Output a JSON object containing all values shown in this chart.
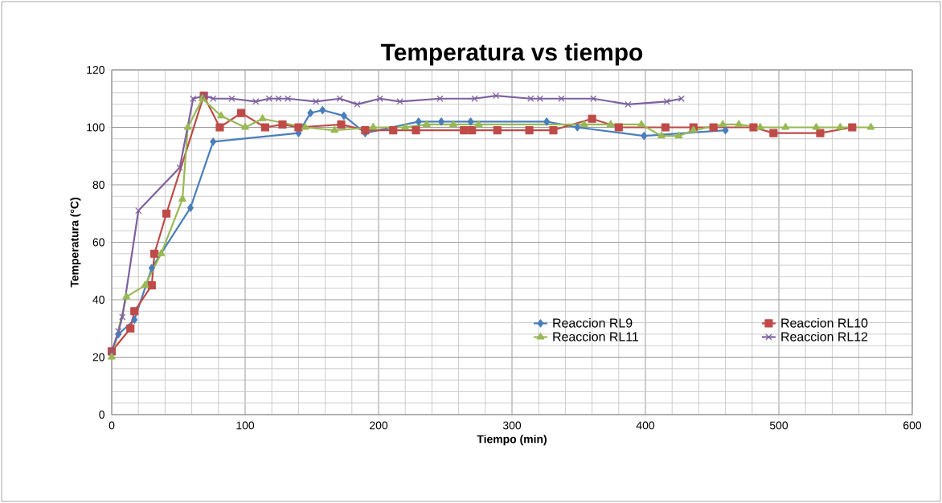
{
  "chart_data": {
    "type": "line",
    "title": "Temperatura vs tiempo",
    "xlabel": "Tiempo (min)",
    "ylabel": "Temperatura (°C)",
    "xlim": [
      0,
      600
    ],
    "xticks": [
      0,
      100,
      200,
      300,
      400,
      500,
      600
    ],
    "ylim": [
      0,
      120
    ],
    "yticks": [
      0,
      20,
      40,
      60,
      80,
      100,
      120
    ],
    "grid": true,
    "legend": "bottom right",
    "series": [
      {
        "name": "Reaccion RL9",
        "color": "#4a7ebb",
        "marker": "diamond",
        "x": [
          0,
          5,
          17,
          30,
          59,
          76,
          81,
          140,
          149,
          158,
          174,
          190,
          230,
          247,
          269,
          326,
          349,
          399,
          460
        ],
        "values": [
          22,
          28,
          33,
          51,
          72,
          95,
          null,
          98,
          105,
          106,
          104,
          98,
          102,
          102,
          102,
          102,
          100,
          97,
          99
        ]
      },
      {
        "name": "Reaccion RL10",
        "color": "#be4b48",
        "marker": "square",
        "x": [
          0,
          14,
          17,
          30,
          32,
          41,
          69,
          81,
          97,
          115,
          128,
          140,
          172,
          190,
          211,
          228,
          264,
          270,
          289,
          313,
          331,
          360,
          380,
          415,
          436,
          451,
          481,
          496,
          531,
          555
        ],
        "values": [
          22,
          30,
          36,
          45,
          56,
          70,
          111,
          100,
          105,
          100,
          101,
          100,
          101,
          99,
          99,
          99,
          99,
          99,
          99,
          99,
          99,
          103,
          100,
          100,
          100,
          100,
          100,
          98,
          98,
          100
        ]
      },
      {
        "name": "Reaccion RL11",
        "color": "#98b954",
        "marker": "triangle",
        "x": [
          0,
          11,
          25,
          37,
          53,
          57,
          68,
          82,
          100,
          113,
          145,
          167,
          196,
          220,
          236,
          256,
          275,
          354,
          374,
          397,
          412,
          425,
          436,
          458,
          470,
          486,
          505,
          528,
          546,
          569
        ],
        "values": [
          20,
          41,
          45,
          56,
          75,
          100,
          110,
          104,
          100,
          103,
          100,
          99,
          100,
          100,
          101,
          101,
          101,
          101,
          101,
          101,
          97,
          97,
          99,
          101,
          101,
          100,
          100,
          100,
          100,
          100
        ]
      },
      {
        "name": "Reaccion RL12",
        "color": "#7d60a0",
        "marker": "cross",
        "x": [
          0,
          5,
          8,
          20,
          51,
          61,
          70,
          76,
          90,
          108,
          118,
          125,
          132,
          153,
          171,
          184,
          201,
          216,
          246,
          272,
          288,
          314,
          321,
          337,
          361,
          387,
          416,
          427
        ],
        "values": [
          22,
          29,
          34,
          71,
          86,
          110,
          111,
          110,
          110,
          109,
          110,
          110,
          110,
          109,
          110,
          108,
          110,
          109,
          110,
          110,
          111,
          110,
          110,
          110,
          110,
          108,
          109,
          110
        ]
      }
    ]
  }
}
